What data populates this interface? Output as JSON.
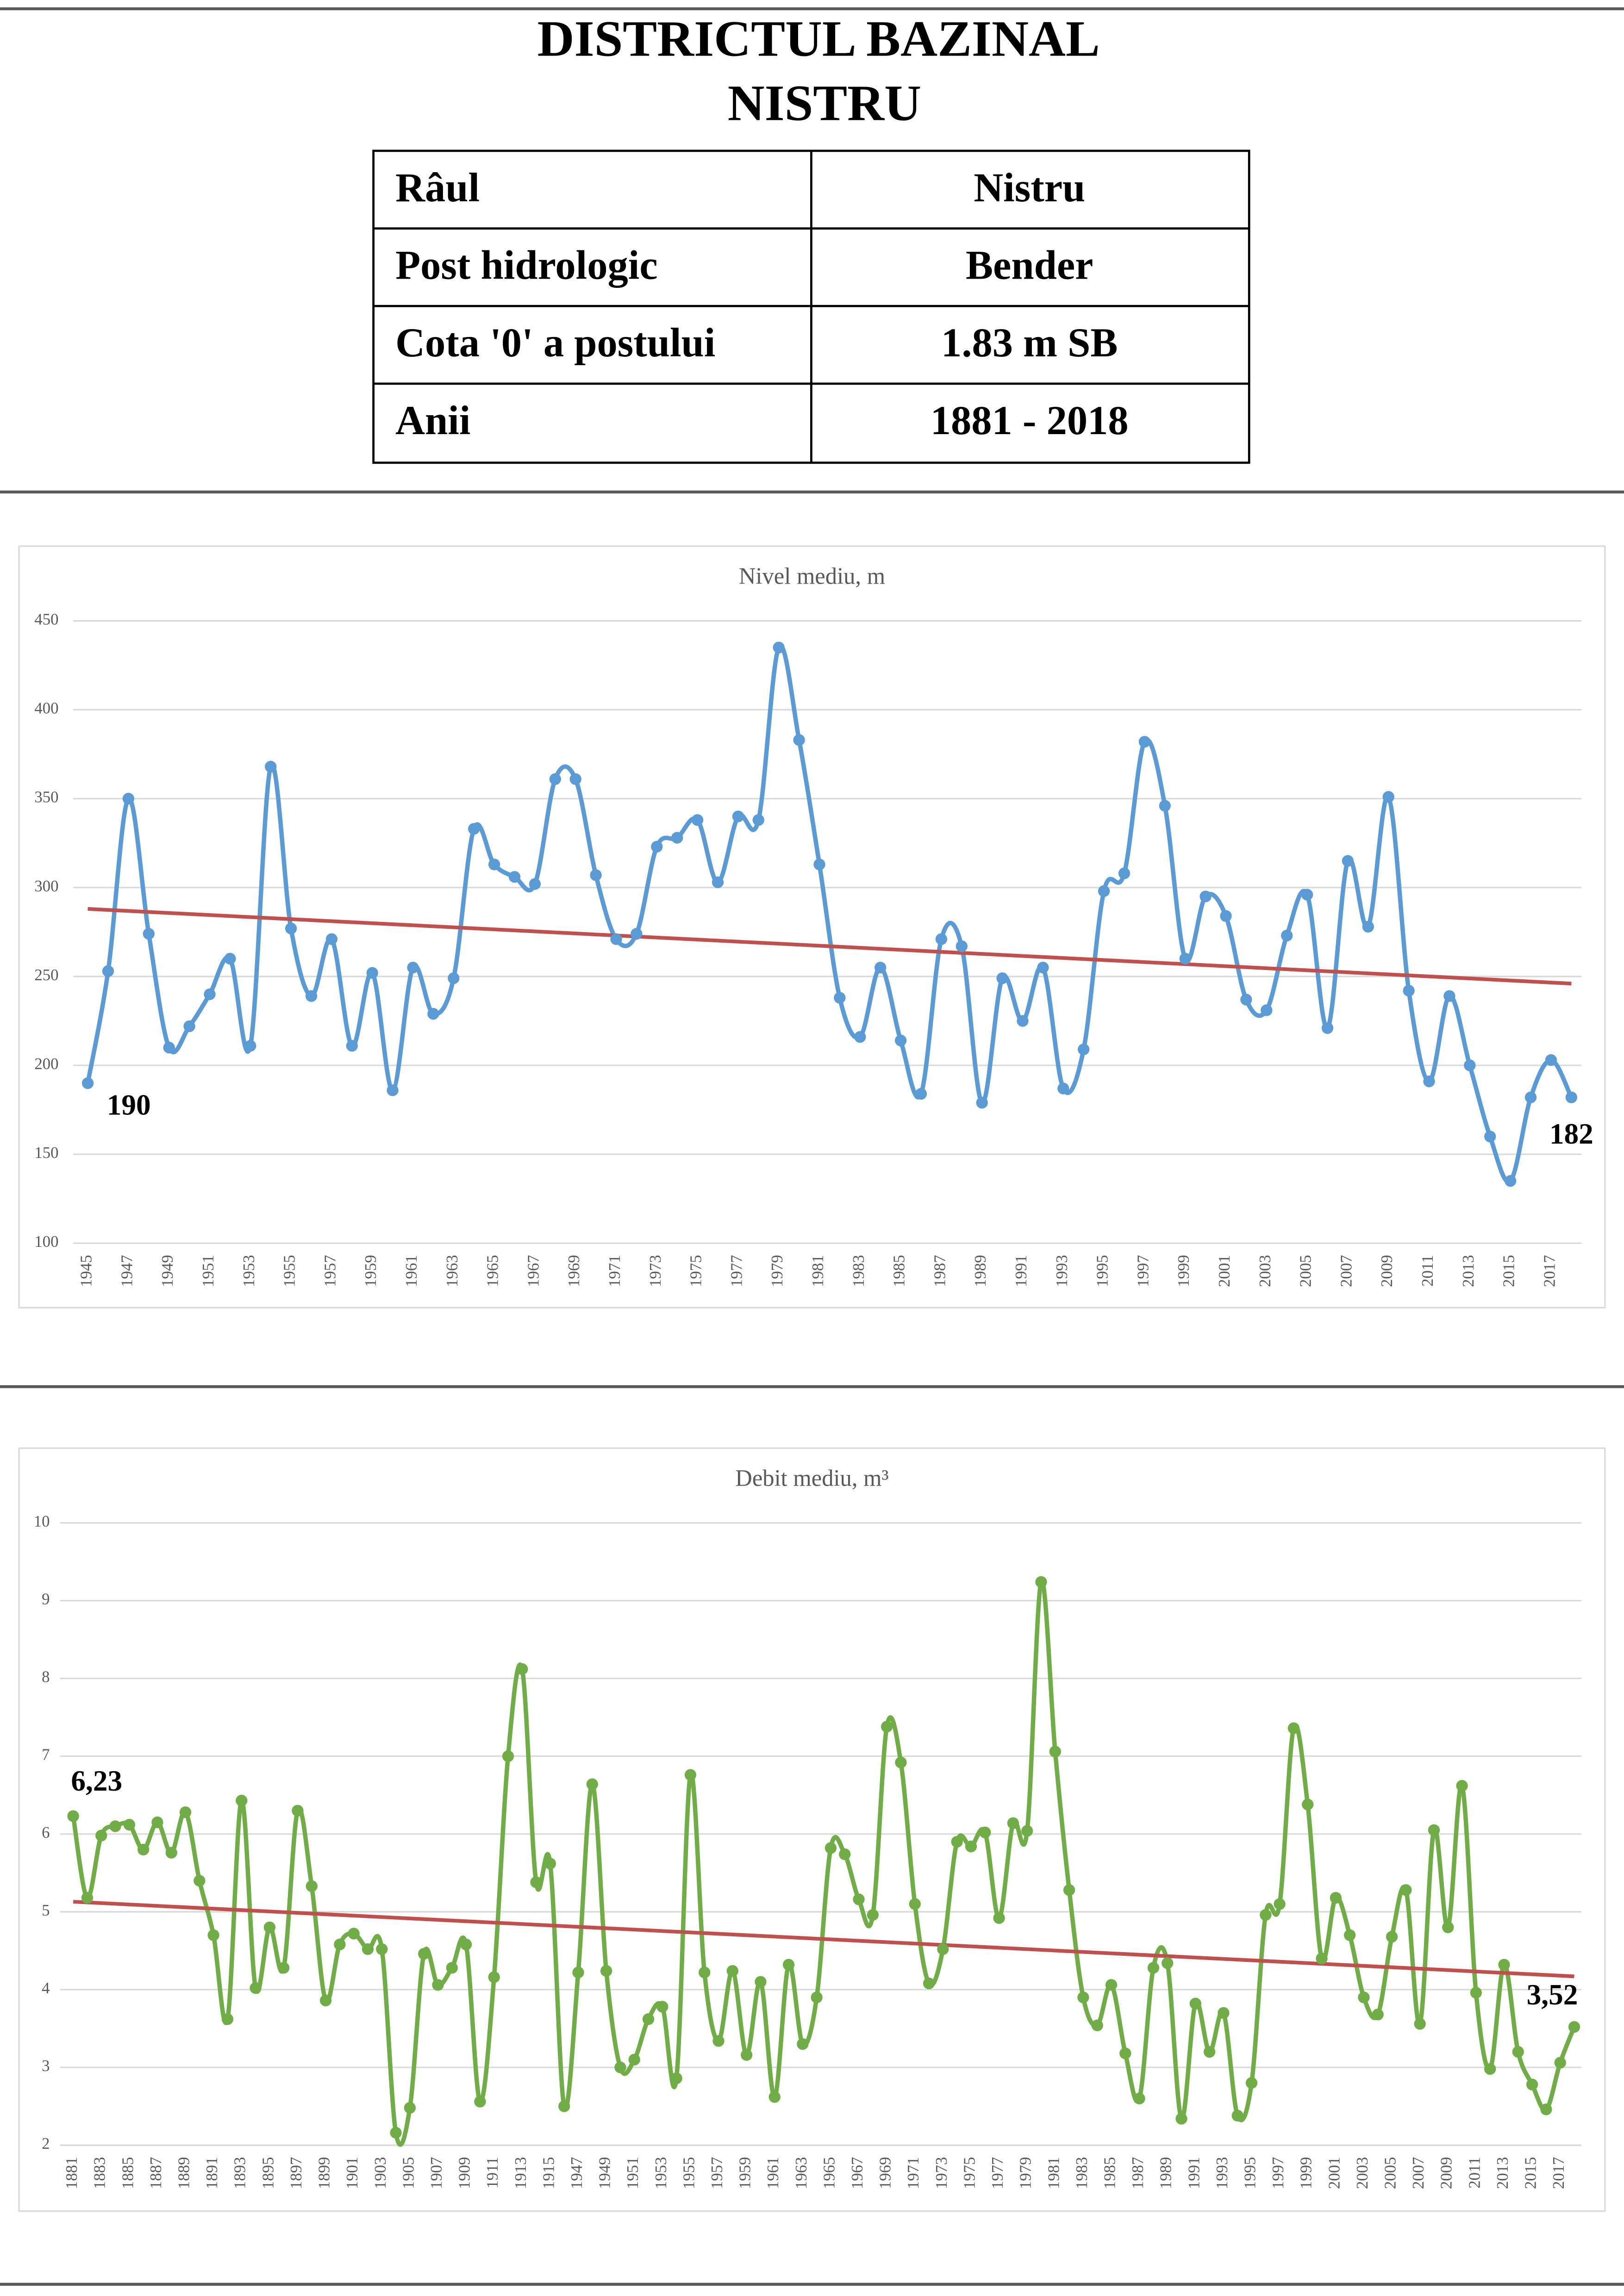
{
  "header": {
    "title_lines": [
      "DISTRICTUL BAZINAL",
      "NISTRU"
    ]
  },
  "table": {
    "rows": [
      [
        "Râul",
        "Nistru"
      ],
      [
        "Post hidrologic",
        "Bender"
      ],
      [
        "Cota '0' a postului",
        "1.83 m SB"
      ],
      [
        "Anii",
        "1881 - 2018"
      ]
    ]
  },
  "chart_data": [
    {
      "type": "line",
      "title": "Nivel mediu, m",
      "color": "#5b9bd5",
      "grid": true,
      "ylim": [
        100,
        450
      ],
      "yticks": [
        100,
        150,
        200,
        250,
        300,
        350,
        400,
        450
      ],
      "categories": [
        "1945",
        null,
        "1947",
        null,
        "1949",
        null,
        "1951",
        null,
        "1953",
        null,
        "1955",
        null,
        "1957",
        null,
        "1959",
        null,
        "1961",
        null,
        "1963",
        null,
        "1965",
        null,
        "1967",
        null,
        "1969",
        null,
        "1971",
        null,
        "1973",
        null,
        "1975",
        null,
        "1977",
        null,
        "1979",
        null,
        "1981",
        null,
        "1983",
        null,
        "1985",
        null,
        "1987",
        null,
        "1989",
        null,
        "1991",
        null,
        "1993",
        null,
        "1995",
        null,
        "1997",
        null,
        "1999",
        null,
        "2001",
        null,
        "2003",
        null,
        "2005",
        null,
        "2007",
        null,
        "2009",
        null,
        "2011",
        null,
        "2013",
        null,
        "2015",
        null,
        "2017",
        null
      ],
      "values": [
        190,
        253,
        350,
        274,
        210,
        222,
        240,
        260,
        211,
        368,
        277,
        239,
        271,
        211,
        252,
        186,
        255,
        229,
        249,
        333,
        313,
        306,
        302,
        361,
        361,
        307,
        271,
        274,
        323,
        328,
        338,
        303,
        340,
        338,
        435,
        383,
        313,
        238,
        216,
        255,
        214,
        184,
        271,
        267,
        179,
        249,
        225,
        255,
        187,
        209,
        298,
        308,
        382,
        346,
        260,
        295,
        284,
        237,
        231,
        273,
        296,
        221,
        315,
        278,
        351,
        242,
        191,
        239,
        200,
        160,
        135,
        182,
        203,
        182
      ],
      "value_labels": [
        "190",
        null,
        null,
        null,
        null,
        null,
        null,
        null,
        null,
        null,
        null,
        null,
        null,
        null,
        null,
        null,
        null,
        null,
        null,
        null,
        null,
        null,
        null,
        null,
        null,
        null,
        null,
        null,
        null,
        null,
        null,
        null,
        null,
        null,
        null,
        null,
        null,
        null,
        null,
        null,
        null,
        null,
        null,
        null,
        null,
        null,
        null,
        null,
        null,
        null,
        null,
        null,
        null,
        null,
        null,
        null,
        null,
        null,
        null,
        null,
        null,
        null,
        null,
        null,
        null,
        null,
        null,
        null,
        null,
        null,
        null,
        null,
        null,
        "182"
      ],
      "trend": {
        "color": "#c0504d",
        "start": 288,
        "end": 246
      }
    },
    {
      "type": "line",
      "title": "Debit mediu, m³",
      "color": "#70ad47",
      "grid": true,
      "ylim": [
        2,
        10
      ],
      "yticks": [
        2,
        3,
        4,
        5,
        6,
        7,
        8,
        9,
        10
      ],
      "categories": [
        "1881",
        null,
        "1883",
        null,
        "1885",
        null,
        "1887",
        null,
        "1889",
        null,
        "1891",
        null,
        "1893",
        null,
        "1895",
        null,
        "1897",
        null,
        "1899",
        null,
        "1901",
        null,
        "1903",
        null,
        "1905",
        null,
        "1907",
        null,
        "1909",
        null,
        "1911",
        null,
        "1913",
        null,
        "1915",
        null,
        "1947",
        null,
        "1949",
        null,
        "1951",
        null,
        "1953",
        null,
        "1955",
        null,
        "1957",
        null,
        "1959",
        null,
        "1961",
        null,
        "1963",
        null,
        "1965",
        null,
        "1967",
        null,
        "1969",
        null,
        "1971",
        null,
        "1973",
        null,
        "1975",
        null,
        "1977",
        null,
        "1979",
        null,
        "1981",
        null,
        "1983",
        null,
        "1985",
        null,
        "1987",
        null,
        "1989",
        null,
        "1991",
        null,
        "1993",
        null,
        "1995",
        null,
        "1997",
        null,
        "1999",
        null,
        "2001",
        null,
        "2003",
        null,
        "2005",
        null,
        "2007",
        null,
        "2009",
        null,
        "2011",
        null,
        "2013",
        null,
        "2015",
        null,
        "2017",
        null
      ],
      "values": [
        6.23,
        5.18,
        5.98,
        6.1,
        6.12,
        5.8,
        6.15,
        5.76,
        6.28,
        5.4,
        4.7,
        3.62,
        6.43,
        4.02,
        4.8,
        4.28,
        6.3,
        5.33,
        3.86,
        4.58,
        4.72,
        4.52,
        4.52,
        2.16,
        2.48,
        4.46,
        4.06,
        4.28,
        4.58,
        2.56,
        4.16,
        7.0,
        8.12,
        5.38,
        5.62,
        2.5,
        4.22,
        6.64,
        4.24,
        3.0,
        3.1,
        3.62,
        3.78,
        2.86,
        6.76,
        4.22,
        3.34,
        4.24,
        3.16,
        4.1,
        2.62,
        4.32,
        3.3,
        3.9,
        5.82,
        5.74,
        5.16,
        4.96,
        7.38,
        6.92,
        5.1,
        4.08,
        4.52,
        5.9,
        5.84,
        6.02,
        4.92,
        6.14,
        6.04,
        9.24,
        7.06,
        5.28,
        3.9,
        3.54,
        4.06,
        3.18,
        2.6,
        4.28,
        4.34,
        2.34,
        3.82,
        3.2,
        3.7,
        2.38,
        2.8,
        4.96,
        5.1,
        7.36,
        6.38,
        4.4,
        5.18,
        4.7,
        3.9,
        3.68,
        4.68,
        5.28,
        3.56,
        6.05,
        4.8,
        6.62,
        3.96,
        2.98,
        4.32,
        3.2,
        2.78,
        2.46,
        3.06,
        3.52
      ],
      "value_labels": [
        "6,23",
        null,
        null,
        null,
        null,
        null,
        null,
        null,
        null,
        null,
        null,
        null,
        null,
        null,
        null,
        null,
        null,
        null,
        null,
        null,
        null,
        null,
        null,
        null,
        null,
        null,
        null,
        null,
        null,
        null,
        null,
        null,
        null,
        null,
        null,
        null,
        null,
        null,
        null,
        null,
        null,
        null,
        null,
        null,
        null,
        null,
        null,
        null,
        null,
        null,
        null,
        null,
        null,
        null,
        null,
        null,
        null,
        null,
        null,
        null,
        null,
        null,
        null,
        null,
        null,
        null,
        null,
        null,
        null,
        null,
        null,
        null,
        null,
        null,
        null,
        null,
        null,
        null,
        null,
        null,
        null,
        null,
        null,
        null,
        null,
        null,
        null,
        null,
        null,
        null,
        null,
        null,
        null,
        null,
        null,
        null,
        null,
        null,
        null,
        null,
        null,
        null,
        null,
        null,
        null,
        null,
        null,
        "3,52"
      ],
      "trend": {
        "color": "#c0504d",
        "start": 5.13,
        "end": 4.17
      }
    }
  ]
}
